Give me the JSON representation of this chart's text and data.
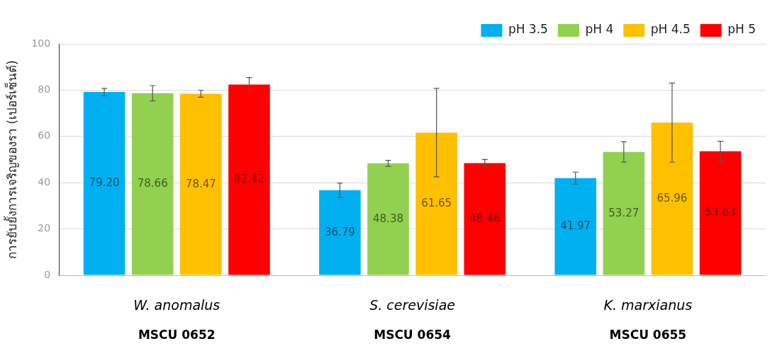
{
  "chart_data": {
    "type": "bar",
    "ylabel": "การยับยั้งการเจริญของรา (เปอร์เซ็นต์)",
    "categories": [
      "W. anomalus\nMSCU 0652",
      "S. cerevisiae\nMSCU 0654",
      "K. marxianus\nMSCU 0655"
    ],
    "series": [
      {
        "name": "pH 3.5",
        "color": "#00b0f0",
        "values": [
          79.2,
          36.79,
          41.97
        ],
        "value_labels": [
          "79.20",
          "36.79",
          "41.97"
        ],
        "errors": [
          1.6,
          3.1,
          2.6
        ]
      },
      {
        "name": "pH 4",
        "color": "#92d050",
        "values": [
          78.66,
          48.38,
          53.27
        ],
        "value_labels": [
          "78.66",
          "48.38",
          "53.27"
        ],
        "errors": [
          3.3,
          1.3,
          4.4
        ]
      },
      {
        "name": "pH 4.5",
        "color": "#ffc000",
        "values": [
          78.47,
          61.65,
          65.96
        ],
        "value_labels": [
          "78.47",
          "61.65",
          "65.96"
        ],
        "errors": [
          1.5,
          19.1,
          17.1
        ]
      },
      {
        "name": "pH 5",
        "color": "#ff0000",
        "values": [
          82.42,
          48.46,
          53.63
        ],
        "value_labels": [
          "82.42",
          "48.46",
          "53.63"
        ],
        "errors": [
          3.0,
          1.6,
          4.3
        ]
      }
    ],
    "ylim": [
      0,
      100
    ],
    "yticks": [
      0,
      20,
      40,
      60,
      80,
      100
    ],
    "grid": "y",
    "legend": "top right"
  }
}
